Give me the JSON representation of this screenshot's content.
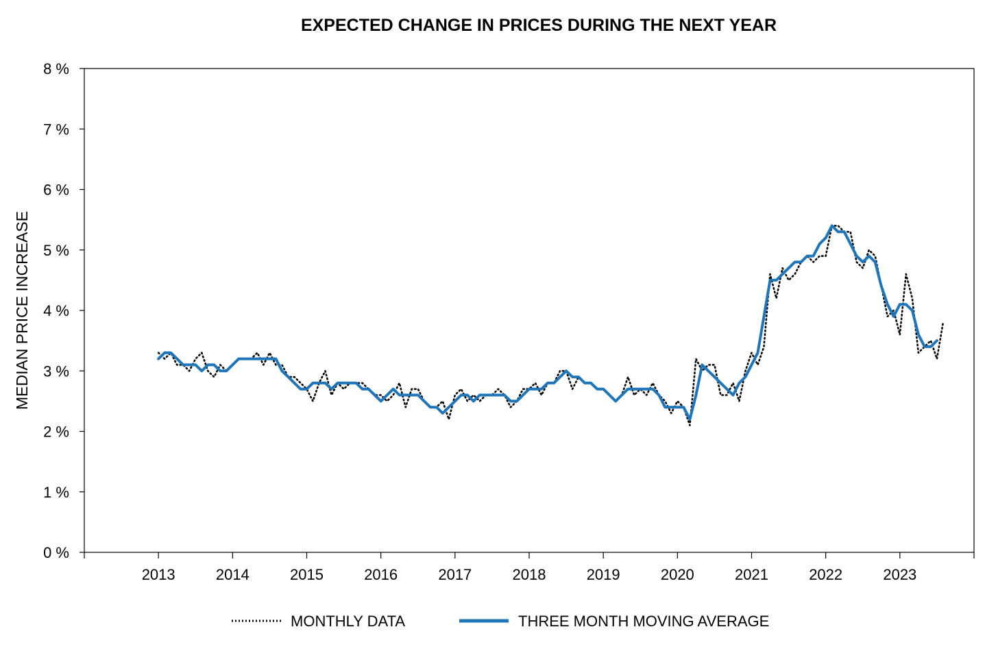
{
  "chart_data": {
    "type": "line",
    "title": "EXPECTED CHANGE IN PRICES DURING THE NEXT YEAR",
    "xlabel": "",
    "ylabel": "MEDIAN PRICE INCREASE",
    "ylim": [
      0,
      8
    ],
    "xlim": [
      2012,
      2024
    ],
    "y_tick_labels": [
      "0 %",
      "1 %",
      "2 %",
      "3 %",
      "4 %",
      "5 %",
      "6 %",
      "7 %",
      "8 %"
    ],
    "x_tick_labels": [
      "2013",
      "2014",
      "2015",
      "2016",
      "2017",
      "2018",
      "2019",
      "2020",
      "2021",
      "2022",
      "2023"
    ],
    "grid": false,
    "legend_position": "bottom",
    "series": [
      {
        "name": "MONTHLY DATA",
        "style": "dotted",
        "color": "#000000",
        "start": "2013-01",
        "values": [
          3.3,
          3.2,
          3.3,
          3.1,
          3.1,
          3.0,
          3.2,
          3.3,
          3.0,
          2.9,
          3.1,
          3.0,
          3.1,
          3.2,
          3.2,
          3.2,
          3.3,
          3.1,
          3.3,
          3.1,
          3.1,
          2.9,
          2.9,
          2.8,
          2.7,
          2.5,
          2.8,
          3.0,
          2.6,
          2.8,
          2.7,
          2.8,
          2.8,
          2.8,
          2.7,
          2.6,
          2.6,
          2.5,
          2.6,
          2.8,
          2.4,
          2.7,
          2.7,
          2.5,
          2.4,
          2.4,
          2.5,
          2.2,
          2.6,
          2.7,
          2.5,
          2.6,
          2.5,
          2.6,
          2.6,
          2.7,
          2.6,
          2.4,
          2.5,
          2.7,
          2.7,
          2.8,
          2.6,
          2.8,
          2.8,
          3.0,
          3.0,
          2.7,
          2.9,
          2.8,
          2.8,
          2.7,
          2.7,
          2.6,
          2.5,
          2.6,
          2.9,
          2.6,
          2.7,
          2.6,
          2.8,
          2.6,
          2.5,
          2.3,
          2.5,
          2.4,
          2.1,
          3.2,
          3.0,
          3.1,
          3.1,
          2.6,
          2.6,
          2.8,
          2.5,
          3.0,
          3.3,
          3.1,
          3.4,
          4.6,
          4.2,
          4.7,
          4.5,
          4.6,
          4.8,
          4.9,
          4.8,
          4.9,
          4.9,
          5.4,
          5.4,
          5.3,
          5.3,
          4.8,
          4.7,
          5.0,
          4.9,
          4.4,
          3.9,
          4.0,
          3.6,
          4.6,
          4.2,
          3.3,
          3.4,
          3.5,
          3.2,
          3.8
        ]
      },
      {
        "name": "THREE MONTH MOVING AVERAGE",
        "style": "solid",
        "color": "#1f75b9",
        "start": "2013-01",
        "values": [
          3.2,
          3.3,
          3.3,
          3.2,
          3.1,
          3.1,
          3.1,
          3.0,
          3.1,
          3.1,
          3.0,
          3.0,
          3.1,
          3.2,
          3.2,
          3.2,
          3.2,
          3.2,
          3.2,
          3.2,
          3.0,
          2.9,
          2.8,
          2.7,
          2.7,
          2.8,
          2.8,
          2.8,
          2.7,
          2.8,
          2.8,
          2.8,
          2.8,
          2.7,
          2.7,
          2.6,
          2.5,
          2.6,
          2.7,
          2.6,
          2.6,
          2.6,
          2.6,
          2.5,
          2.4,
          2.4,
          2.3,
          2.4,
          2.5,
          2.6,
          2.6,
          2.5,
          2.6,
          2.6,
          2.6,
          2.6,
          2.6,
          2.5,
          2.5,
          2.6,
          2.7,
          2.7,
          2.7,
          2.8,
          2.8,
          2.9,
          3.0,
          2.9,
          2.9,
          2.8,
          2.8,
          2.7,
          2.7,
          2.6,
          2.5,
          2.6,
          2.7,
          2.7,
          2.7,
          2.7,
          2.7,
          2.6,
          2.4,
          2.4,
          2.4,
          2.4,
          2.2,
          2.6,
          3.1,
          3.0,
          2.9,
          2.8,
          2.7,
          2.6,
          2.8,
          2.9,
          3.1,
          3.3,
          3.9,
          4.5,
          4.5,
          4.6,
          4.7,
          4.8,
          4.8,
          4.9,
          4.9,
          5.1,
          5.2,
          5.4,
          5.3,
          5.3,
          5.1,
          4.9,
          4.8,
          4.9,
          4.8,
          4.4,
          4.1,
          3.9,
          4.1,
          4.1,
          4.0,
          3.6,
          3.4,
          3.4,
          3.5
        ]
      }
    ]
  }
}
